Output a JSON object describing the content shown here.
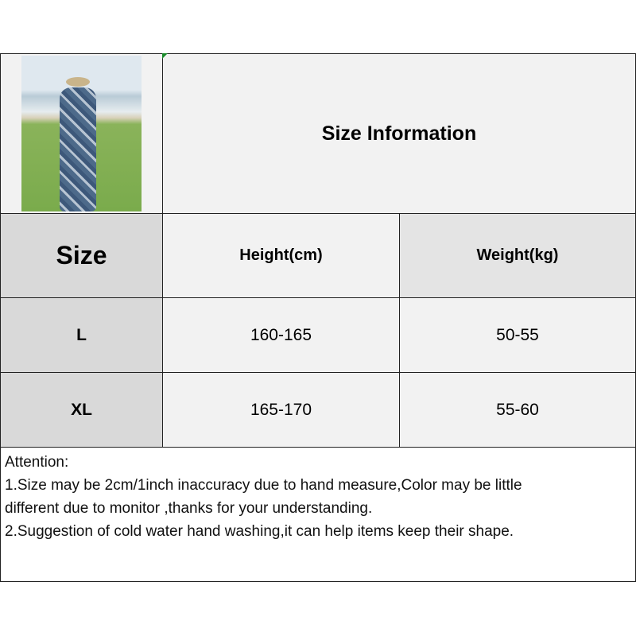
{
  "title": "Size Information",
  "table": {
    "headers": [
      "Size",
      "Height(cm)",
      "Weight(kg)"
    ],
    "rows": [
      {
        "size": "L",
        "height": "160-165",
        "weight": "50-55"
      },
      {
        "size": "XL",
        "height": "165-170",
        "weight": "55-60"
      }
    ]
  },
  "notes": {
    "heading": "Attention:",
    "line1": "1.Size may be 2cm/1inch inaccuracy due to hand measure,Color may be little",
    "line2": "different due to monitor ,thanks for your understanding.",
    "line3": "2.Suggestion of cold water hand washing,it can help items keep their shape."
  }
}
